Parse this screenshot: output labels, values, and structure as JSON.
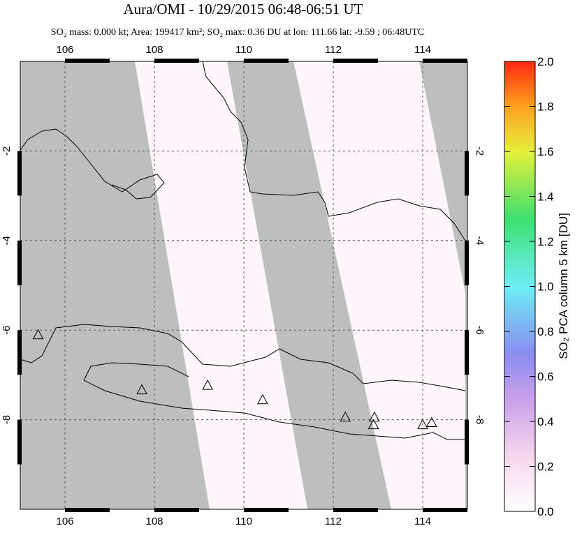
{
  "header": {
    "title": "Aura/OMI - 10/29/2015 06:48-06:51 UT",
    "subtitle": "SO₂ mass: 0.000 kt; Area: 199417 km²; SO₂ max: 0.36 DU at lon: 111.66 lat: -9.59 ; 06:48UTC"
  },
  "map": {
    "xlim": [
      105,
      115
    ],
    "ylim": [
      -10,
      0
    ],
    "xticks": [
      106,
      108,
      110,
      112,
      114
    ],
    "yticks": [
      -2,
      -4,
      -6,
      -8
    ],
    "volcanoes": [
      {
        "lon": 105.4,
        "lat": -6.1
      },
      {
        "lon": 107.72,
        "lat": -7.33
      },
      {
        "lon": 109.19,
        "lat": -7.23
      },
      {
        "lon": 110.42,
        "lat": -7.55
      },
      {
        "lon": 112.27,
        "lat": -7.94
      },
      {
        "lon": 112.92,
        "lat": -7.94
      },
      {
        "lon": 112.9,
        "lat": -8.11
      },
      {
        "lon": 114.0,
        "lat": -8.11
      },
      {
        "lon": 114.2,
        "lat": -8.06
      }
    ]
  },
  "colorbar": {
    "label": "SO₂ PCA column 5 km [DU]",
    "lim": [
      0,
      2
    ],
    "ticks": [
      {
        "value": 0,
        "label": "0.0"
      },
      {
        "value": 0.2,
        "label": "0.2"
      },
      {
        "value": 0.4,
        "label": "0.4"
      },
      {
        "value": 0.6,
        "label": "0.6"
      },
      {
        "value": 0.8,
        "label": "0.8"
      },
      {
        "value": 1,
        "label": "1.0"
      },
      {
        "value": 1.2,
        "label": "1.2"
      },
      {
        "value": 1.4,
        "label": "1.4"
      },
      {
        "value": 1.6,
        "label": "1.6"
      },
      {
        "value": 1.8,
        "label": "1.8"
      },
      {
        "value": 2,
        "label": "2.0"
      }
    ]
  }
}
